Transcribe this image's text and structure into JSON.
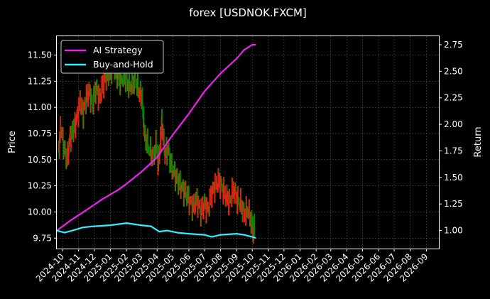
{
  "chart_data": {
    "type": "line",
    "title": "forex [USDNOK.FXCM]",
    "xlabel": "",
    "ylabel": "Price",
    "y2label": "Return",
    "grid": true,
    "legend_position": "top-left",
    "background": "#000000",
    "x_tick_labels": [
      "2024-10",
      "2024-11",
      "2024-12",
      "2025-01",
      "2025-02",
      "2025-03",
      "2025-04",
      "2025-05",
      "2025-06",
      "2025-07",
      "2025-08",
      "2025-09",
      "2025-10",
      "2025-11",
      "2025-12",
      "2026-01",
      "2026-02",
      "2026-03",
      "2026-04",
      "2026-05",
      "2026-06",
      "2026-07",
      "2026-08",
      "2026-09"
    ],
    "ylim": [
      9.65,
      11.68
    ],
    "y_ticks": [
      "9.75",
      "10.00",
      "10.25",
      "10.50",
      "10.75",
      "11.00",
      "11.25",
      "11.50"
    ],
    "y2lim": [
      0.83,
      2.83
    ],
    "y2_ticks": [
      "1.00",
      "1.25",
      "1.50",
      "1.75",
      "2.00",
      "2.25",
      "2.50",
      "2.75"
    ],
    "xlim": [
      "2024-09-20",
      "2026-09-25"
    ],
    "price_series": {
      "name": "",
      "up_color": "#ff1a1a",
      "down_color": "#008800",
      "x": [
        "2024-09-23",
        "2024-09-28",
        "2024-10-04",
        "2024-10-10",
        "2024-10-16",
        "2024-10-22",
        "2024-10-28",
        "2024-11-04",
        "2024-11-10",
        "2024-11-16",
        "2024-11-22",
        "2024-11-28",
        "2024-12-05",
        "2024-12-11",
        "2024-12-18",
        "2024-12-24",
        "2024-12-31",
        "2025-01-07",
        "2025-01-14",
        "2025-01-21",
        "2025-01-28",
        "2025-02-04",
        "2025-02-11",
        "2025-02-18",
        "2025-02-25",
        "2025-03-03",
        "2025-03-06",
        "2025-03-10",
        "2025-03-17",
        "2025-03-24",
        "2025-03-31",
        "2025-04-03",
        "2025-04-07",
        "2025-04-10",
        "2025-04-16",
        "2025-04-22",
        "2025-04-29",
        "2025-05-06",
        "2025-05-13",
        "2025-05-20",
        "2025-05-27",
        "2025-06-03",
        "2025-06-10",
        "2025-06-17",
        "2025-06-24",
        "2025-07-01",
        "2025-07-08",
        "2025-07-15",
        "2025-07-22",
        "2025-07-29",
        "2025-08-05",
        "2025-08-12",
        "2025-08-19",
        "2025-08-26",
        "2025-09-02",
        "2025-09-09",
        "2025-09-16",
        "2025-09-23",
        "2025-09-30",
        "2025-10-03",
        "2025-10-06"
      ],
      "values": [
        10.56,
        10.82,
        10.62,
        10.5,
        10.72,
        10.78,
        10.88,
        11.05,
        10.95,
        11.1,
        11.15,
        11.02,
        11.2,
        11.08,
        11.22,
        11.3,
        11.32,
        11.42,
        11.3,
        11.25,
        11.3,
        11.22,
        11.2,
        11.28,
        11.15,
        11.1,
        10.85,
        10.7,
        10.6,
        10.52,
        10.65,
        10.45,
        10.62,
        10.88,
        10.55,
        10.6,
        10.42,
        10.35,
        10.28,
        10.22,
        10.18,
        10.1,
        10.05,
        10.12,
        10.0,
        10.08,
        10.02,
        10.18,
        10.25,
        10.3,
        10.22,
        10.15,
        10.1,
        10.22,
        10.12,
        10.08,
        9.98,
        10.02,
        9.9,
        9.78,
        9.9
      ]
    },
    "series": [
      {
        "name": "AI Strategy",
        "color": "#ee22ee",
        "x": [
          "2024-09-20",
          "2024-10-15",
          "2024-11-15",
          "2024-12-15",
          "2025-01-15",
          "2025-02-01",
          "2025-03-01",
          "2025-04-01",
          "2025-04-15",
          "2025-05-01",
          "2025-06-01",
          "2025-07-01",
          "2025-08-01",
          "2025-09-01",
          "2025-09-15",
          "2025-10-01",
          "2025-10-08"
        ],
        "values": [
          1.0,
          1.09,
          1.19,
          1.29,
          1.38,
          1.44,
          1.55,
          1.69,
          1.79,
          1.9,
          2.1,
          2.31,
          2.48,
          2.62,
          2.7,
          2.75,
          2.75
        ]
      },
      {
        "name": "Buy-and-Hold",
        "color": "#33eeff",
        "x": [
          "2024-09-20",
          "2024-10-05",
          "2024-10-20",
          "2024-11-10",
          "2024-12-01",
          "2025-01-01",
          "2025-02-01",
          "2025-03-01",
          "2025-03-20",
          "2025-04-05",
          "2025-04-20",
          "2025-05-10",
          "2025-06-01",
          "2025-07-01",
          "2025-07-15",
          "2025-08-01",
          "2025-09-01",
          "2025-09-15",
          "2025-10-01",
          "2025-10-08"
        ],
        "values": [
          1.0,
          0.98,
          1.0,
          1.03,
          1.04,
          1.05,
          1.07,
          1.05,
          1.04,
          0.99,
          1.0,
          0.98,
          0.97,
          0.96,
          0.94,
          0.96,
          0.97,
          0.96,
          0.94,
          0.93
        ]
      }
    ]
  }
}
